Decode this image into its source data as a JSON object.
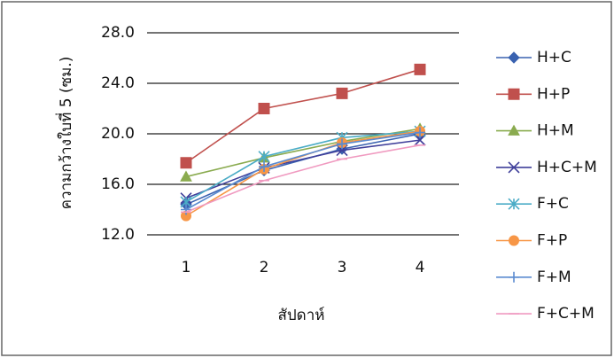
{
  "chart_data": {
    "type": "line",
    "y_label": "ความกว้างใบที่ 5 (ซม.)",
    "x_label": "สัปดาห์",
    "categories": [
      "1",
      "2",
      "3",
      "4"
    ],
    "ylim": [
      12,
      28
    ],
    "yticks": [
      {
        "value": 12,
        "label": "12.0"
      },
      {
        "value": 16,
        "label": "16.0"
      },
      {
        "value": 20,
        "label": "20.0"
      },
      {
        "value": 24,
        "label": "24.0"
      },
      {
        "value": 28,
        "label": "28.0"
      }
    ],
    "grid": true,
    "legend": "right",
    "series": [
      {
        "name": "H+C",
        "color": "#3a62b0",
        "marker": "diamond",
        "values": [
          14.4,
          17.1,
          18.8,
          20.0
        ]
      },
      {
        "name": "H+P",
        "color": "#c0504d",
        "marker": "square",
        "values": [
          17.7,
          22.0,
          23.2,
          25.1
        ]
      },
      {
        "name": "H+M",
        "color": "#8aab4f",
        "marker": "triangle",
        "values": [
          16.6,
          18.1,
          19.4,
          20.4
        ]
      },
      {
        "name": "H+C+M",
        "color": "#3f3f9a",
        "marker": "x",
        "values": [
          14.9,
          17.3,
          18.7,
          19.5
        ]
      },
      {
        "name": "F+C",
        "color": "#4bacc6",
        "marker": "asterisk",
        "values": [
          14.6,
          18.2,
          19.7,
          20.2
        ]
      },
      {
        "name": "F+P",
        "color": "#f79646",
        "marker": "circle",
        "values": [
          13.5,
          17.2,
          19.3,
          20.2
        ]
      },
      {
        "name": "F+M",
        "color": "#5b8bd0",
        "marker": "plus",
        "values": [
          14.0,
          17.4,
          19.2,
          20.1
        ]
      },
      {
        "name": "F+C+M",
        "color": "#f09ac0",
        "marker": "dash",
        "values": [
          13.8,
          16.3,
          18.0,
          19.1
        ]
      }
    ]
  }
}
